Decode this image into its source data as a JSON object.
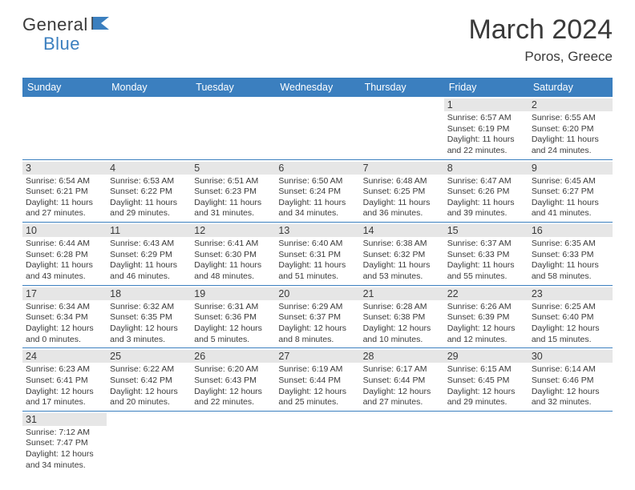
{
  "logo": {
    "general": "General",
    "blue": "Blue"
  },
  "title": "March 2024",
  "location": "Poros, Greece",
  "colors": {
    "header_bg": "#3b7fbf",
    "header_text": "#ffffff",
    "daynum_bg": "#e6e6e6",
    "text": "#3a3a3a",
    "divider": "#3b7fbf",
    "page_bg": "#ffffff"
  },
  "typography": {
    "title_fontsize": 34,
    "location_fontsize": 17,
    "dayheader_fontsize": 12.5,
    "daynum_fontsize": 12.5,
    "info_fontsize": 10.5,
    "logo_fontsize": 22
  },
  "layout": {
    "columns": 7,
    "rows": 6,
    "start_day_index": 5
  },
  "day_names": [
    "Sunday",
    "Monday",
    "Tuesday",
    "Wednesday",
    "Thursday",
    "Friday",
    "Saturday"
  ],
  "days": [
    {
      "n": 1,
      "sunrise": "6:57 AM",
      "sunset": "6:19 PM",
      "daylight": "11 hours and 22 minutes."
    },
    {
      "n": 2,
      "sunrise": "6:55 AM",
      "sunset": "6:20 PM",
      "daylight": "11 hours and 24 minutes."
    },
    {
      "n": 3,
      "sunrise": "6:54 AM",
      "sunset": "6:21 PM",
      "daylight": "11 hours and 27 minutes."
    },
    {
      "n": 4,
      "sunrise": "6:53 AM",
      "sunset": "6:22 PM",
      "daylight": "11 hours and 29 minutes."
    },
    {
      "n": 5,
      "sunrise": "6:51 AM",
      "sunset": "6:23 PM",
      "daylight": "11 hours and 31 minutes."
    },
    {
      "n": 6,
      "sunrise": "6:50 AM",
      "sunset": "6:24 PM",
      "daylight": "11 hours and 34 minutes."
    },
    {
      "n": 7,
      "sunrise": "6:48 AM",
      "sunset": "6:25 PM",
      "daylight": "11 hours and 36 minutes."
    },
    {
      "n": 8,
      "sunrise": "6:47 AM",
      "sunset": "6:26 PM",
      "daylight": "11 hours and 39 minutes."
    },
    {
      "n": 9,
      "sunrise": "6:45 AM",
      "sunset": "6:27 PM",
      "daylight": "11 hours and 41 minutes."
    },
    {
      "n": 10,
      "sunrise": "6:44 AM",
      "sunset": "6:28 PM",
      "daylight": "11 hours and 43 minutes."
    },
    {
      "n": 11,
      "sunrise": "6:43 AM",
      "sunset": "6:29 PM",
      "daylight": "11 hours and 46 minutes."
    },
    {
      "n": 12,
      "sunrise": "6:41 AM",
      "sunset": "6:30 PM",
      "daylight": "11 hours and 48 minutes."
    },
    {
      "n": 13,
      "sunrise": "6:40 AM",
      "sunset": "6:31 PM",
      "daylight": "11 hours and 51 minutes."
    },
    {
      "n": 14,
      "sunrise": "6:38 AM",
      "sunset": "6:32 PM",
      "daylight": "11 hours and 53 minutes."
    },
    {
      "n": 15,
      "sunrise": "6:37 AM",
      "sunset": "6:33 PM",
      "daylight": "11 hours and 55 minutes."
    },
    {
      "n": 16,
      "sunrise": "6:35 AM",
      "sunset": "6:33 PM",
      "daylight": "11 hours and 58 minutes."
    },
    {
      "n": 17,
      "sunrise": "6:34 AM",
      "sunset": "6:34 PM",
      "daylight": "12 hours and 0 minutes."
    },
    {
      "n": 18,
      "sunrise": "6:32 AM",
      "sunset": "6:35 PM",
      "daylight": "12 hours and 3 minutes."
    },
    {
      "n": 19,
      "sunrise": "6:31 AM",
      "sunset": "6:36 PM",
      "daylight": "12 hours and 5 minutes."
    },
    {
      "n": 20,
      "sunrise": "6:29 AM",
      "sunset": "6:37 PM",
      "daylight": "12 hours and 8 minutes."
    },
    {
      "n": 21,
      "sunrise": "6:28 AM",
      "sunset": "6:38 PM",
      "daylight": "12 hours and 10 minutes."
    },
    {
      "n": 22,
      "sunrise": "6:26 AM",
      "sunset": "6:39 PM",
      "daylight": "12 hours and 12 minutes."
    },
    {
      "n": 23,
      "sunrise": "6:25 AM",
      "sunset": "6:40 PM",
      "daylight": "12 hours and 15 minutes."
    },
    {
      "n": 24,
      "sunrise": "6:23 AM",
      "sunset": "6:41 PM",
      "daylight": "12 hours and 17 minutes."
    },
    {
      "n": 25,
      "sunrise": "6:22 AM",
      "sunset": "6:42 PM",
      "daylight": "12 hours and 20 minutes."
    },
    {
      "n": 26,
      "sunrise": "6:20 AM",
      "sunset": "6:43 PM",
      "daylight": "12 hours and 22 minutes."
    },
    {
      "n": 27,
      "sunrise": "6:19 AM",
      "sunset": "6:44 PM",
      "daylight": "12 hours and 25 minutes."
    },
    {
      "n": 28,
      "sunrise": "6:17 AM",
      "sunset": "6:44 PM",
      "daylight": "12 hours and 27 minutes."
    },
    {
      "n": 29,
      "sunrise": "6:15 AM",
      "sunset": "6:45 PM",
      "daylight": "12 hours and 29 minutes."
    },
    {
      "n": 30,
      "sunrise": "6:14 AM",
      "sunset": "6:46 PM",
      "daylight": "12 hours and 32 minutes."
    },
    {
      "n": 31,
      "sunrise": "7:12 AM",
      "sunset": "7:47 PM",
      "daylight": "12 hours and 34 minutes."
    }
  ],
  "labels": {
    "sunrise": "Sunrise:",
    "sunset": "Sunset:",
    "daylight": "Daylight:"
  }
}
